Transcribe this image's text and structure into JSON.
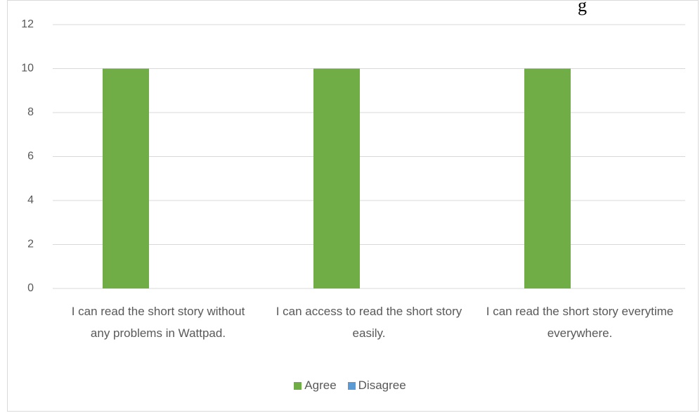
{
  "chart_data": {
    "type": "bar",
    "annotation": "g",
    "categories": [
      "I can read the short story without any problems in Wattpad.",
      "I can access to read the short story easily.",
      "I can read the short story everytime everywhere."
    ],
    "series": [
      {
        "name": "Agree",
        "color": "#70ad47",
        "values": [
          10,
          10,
          10
        ]
      },
      {
        "name": "Disagree",
        "color": "#5b9bd5",
        "values": [
          0,
          0,
          0
        ]
      }
    ],
    "ylim": [
      0,
      12
    ],
    "yticks": [
      0,
      2,
      4,
      6,
      8,
      10,
      12
    ],
    "grid": true,
    "legend": "bottom"
  }
}
